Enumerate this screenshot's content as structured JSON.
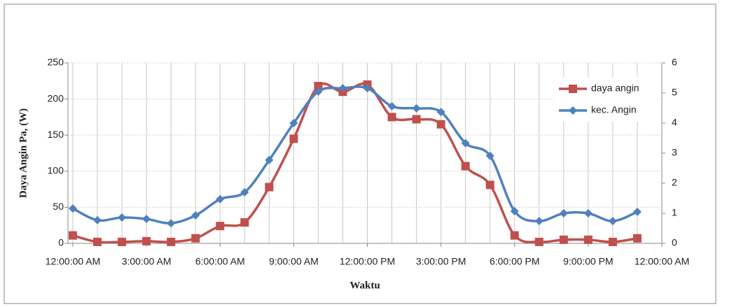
{
  "chart_data": {
    "type": "line",
    "y_label": "Daya Angin Pa, (W)",
    "x_label": "Waktu",
    "x": [
      0,
      1,
      2,
      3,
      4,
      5,
      6,
      7,
      8,
      9,
      10,
      11,
      12,
      13,
      14,
      15,
      16,
      17,
      18,
      19,
      20,
      21,
      22,
      23
    ],
    "xlim": [
      -0.2,
      24
    ],
    "xticks": [
      {
        "value": 0,
        "label": "12:00:00 AM"
      },
      {
        "value": 3,
        "label": "3:00:00 AM"
      },
      {
        "value": 6,
        "label": "6:00:00 AM"
      },
      {
        "value": 9,
        "label": "9:00:00 AM"
      },
      {
        "value": 12,
        "label": "12:00:00 PM"
      },
      {
        "value": 15,
        "label": "3:00:00 PM"
      },
      {
        "value": 18,
        "label": "6:00:00 PM"
      },
      {
        "value": 21,
        "label": "9:00:00 PM"
      },
      {
        "value": 24,
        "label": "12:00:00 AM"
      }
    ],
    "ylim": [
      0,
      250
    ],
    "yticks": [
      0,
      50,
      100,
      150,
      200,
      250
    ],
    "y2lim": [
      0,
      6
    ],
    "y2ticks": [
      0,
      1,
      2,
      3,
      4,
      5,
      6
    ],
    "grid": true,
    "legend": "upper right",
    "series": [
      {
        "name": "daya angin",
        "color": "#c0504d",
        "marker": "square",
        "values": [
          11,
          2,
          2,
          3,
          2,
          7,
          24,
          29,
          78,
          145,
          218,
          210,
          220,
          175,
          172,
          165,
          107,
          81,
          11,
          2,
          5,
          5,
          2,
          7
        ]
      },
      {
        "name": "kec. Angin",
        "color": "#4f81bd",
        "marker": "diamond",
        "axis": "y2",
        "values": [
          1.16,
          0.77,
          0.86,
          0.81,
          0.67,
          0.93,
          1.47,
          1.7,
          2.77,
          4.0,
          5.05,
          5.16,
          5.16,
          4.56,
          4.49,
          4.37,
          3.33,
          2.91,
          1.07,
          0.74,
          1.0,
          1.0,
          0.74,
          1.05
        ]
      }
    ]
  }
}
